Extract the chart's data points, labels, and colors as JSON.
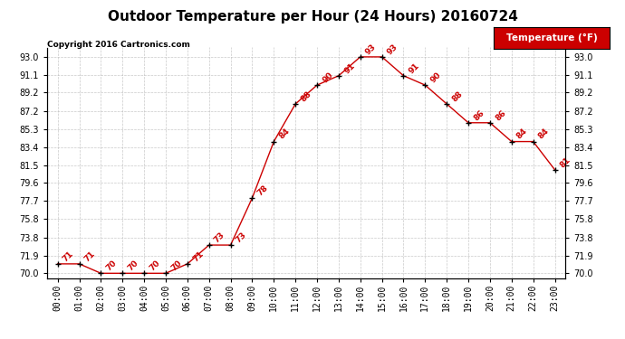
{
  "title": "Outdoor Temperature per Hour (24 Hours) 20160724",
  "copyright": "Copyright 2016 Cartronics.com",
  "legend_label": "Temperature (°F)",
  "hours": [
    "00:00",
    "01:00",
    "02:00",
    "03:00",
    "04:00",
    "05:00",
    "06:00",
    "07:00",
    "08:00",
    "09:00",
    "10:00",
    "11:00",
    "12:00",
    "13:00",
    "14:00",
    "15:00",
    "16:00",
    "17:00",
    "18:00",
    "19:00",
    "20:00",
    "21:00",
    "22:00",
    "23:00"
  ],
  "temps": [
    71,
    71,
    70,
    70,
    70,
    70,
    71,
    73,
    73,
    78,
    84,
    88,
    90,
    91,
    93,
    93,
    91,
    90,
    88,
    86,
    86,
    84,
    84,
    81
  ],
  "ylim_min": 70.0,
  "ylim_max": 93.0,
  "yticks": [
    70.0,
    71.9,
    73.8,
    75.8,
    77.7,
    79.6,
    81.5,
    83.4,
    85.3,
    87.2,
    89.2,
    91.1,
    93.0
  ],
  "line_color": "#cc0000",
  "marker_color": "#000000",
  "bg_color": "#ffffff",
  "grid_color": "#bbbbbb",
  "title_fontsize": 11,
  "copyright_fontsize": 6.5,
  "legend_bg": "#cc0000",
  "legend_text_color": "#ffffff"
}
